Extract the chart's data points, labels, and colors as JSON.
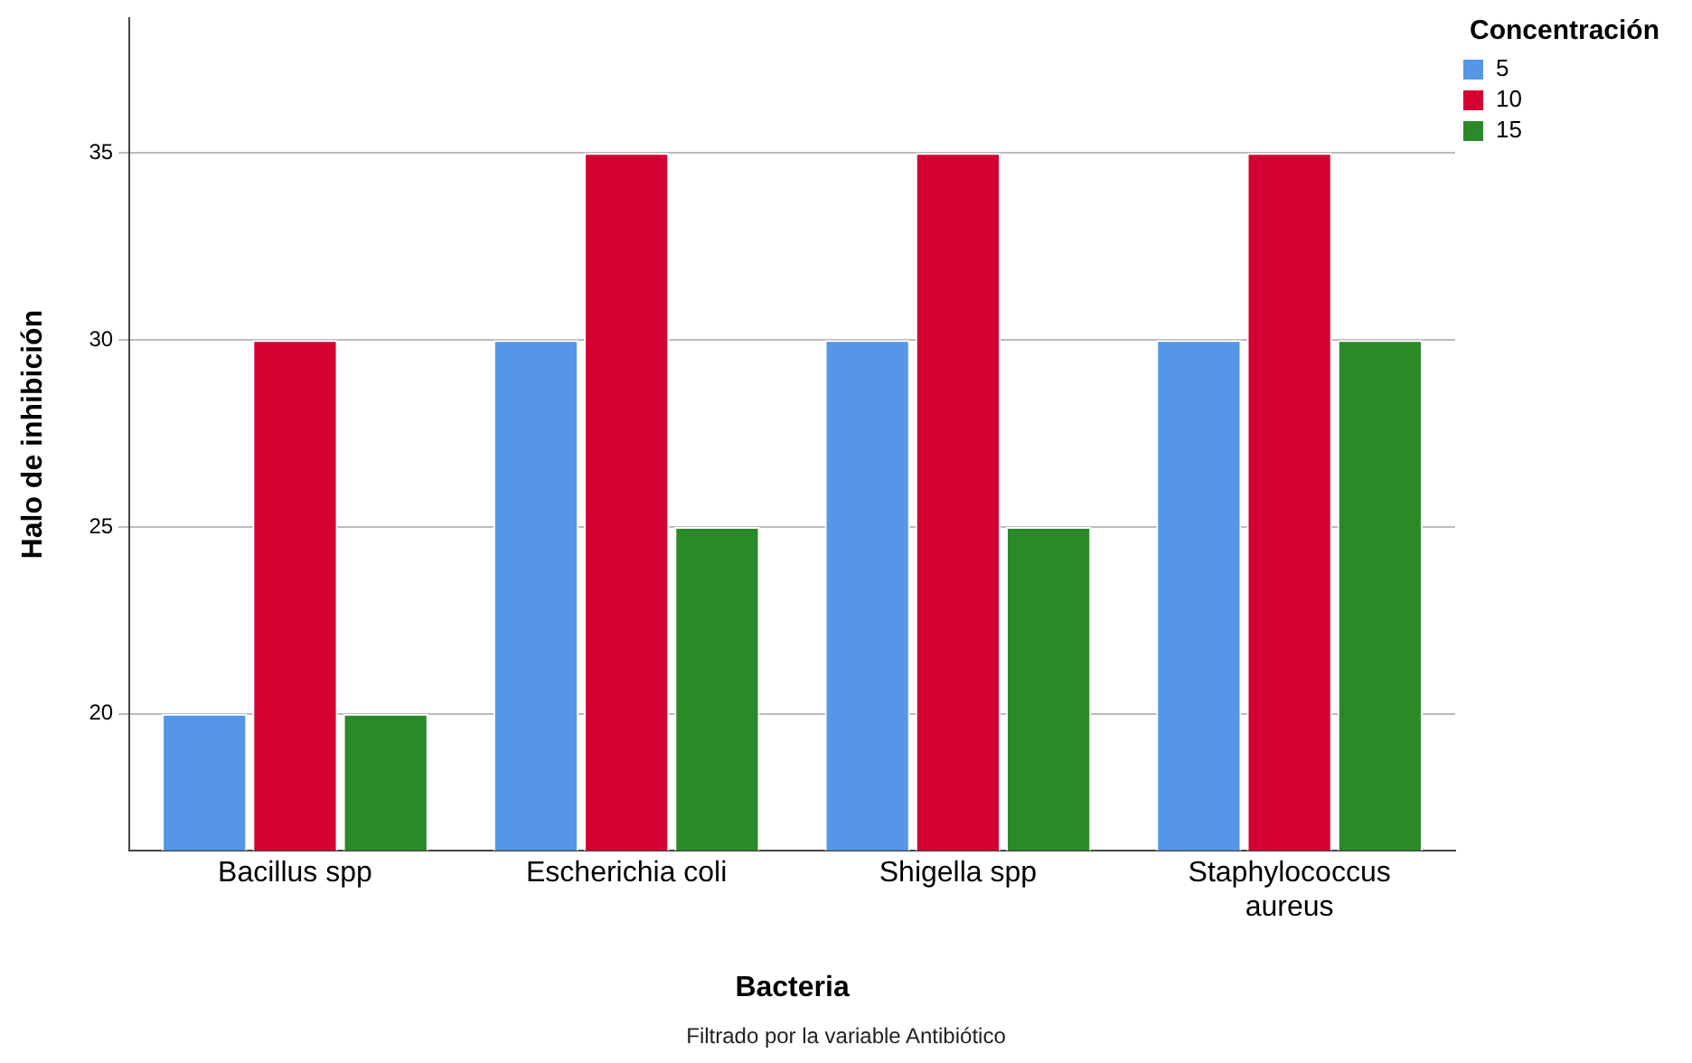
{
  "chart_data": {
    "type": "bar",
    "xlabel": "Bacteria",
    "ylabel": "Halo de inhibición",
    "legend_title": "Concentración",
    "categories": [
      "Bacillus spp",
      "Escherichia coli",
      "Shigella spp",
      "Staphylococcus aureus"
    ],
    "series": [
      {
        "name": "5",
        "color": "#5596e6",
        "values": [
          20,
          30,
          30,
          30
        ]
      },
      {
        "name": "10",
        "color": "#d50032",
        "values": [
          30,
          35,
          35,
          35
        ]
      },
      {
        "name": "15",
        "color": "#2a8a2a",
        "values": [
          20,
          25,
          25,
          30
        ]
      }
    ],
    "ylim": [
      16.35,
      38.6
    ],
    "yticks": [
      20,
      25,
      30,
      35
    ],
    "grid": "y",
    "legend": "top right",
    "annotations": [
      "Filtrado por la variable Antibiótico"
    ]
  }
}
